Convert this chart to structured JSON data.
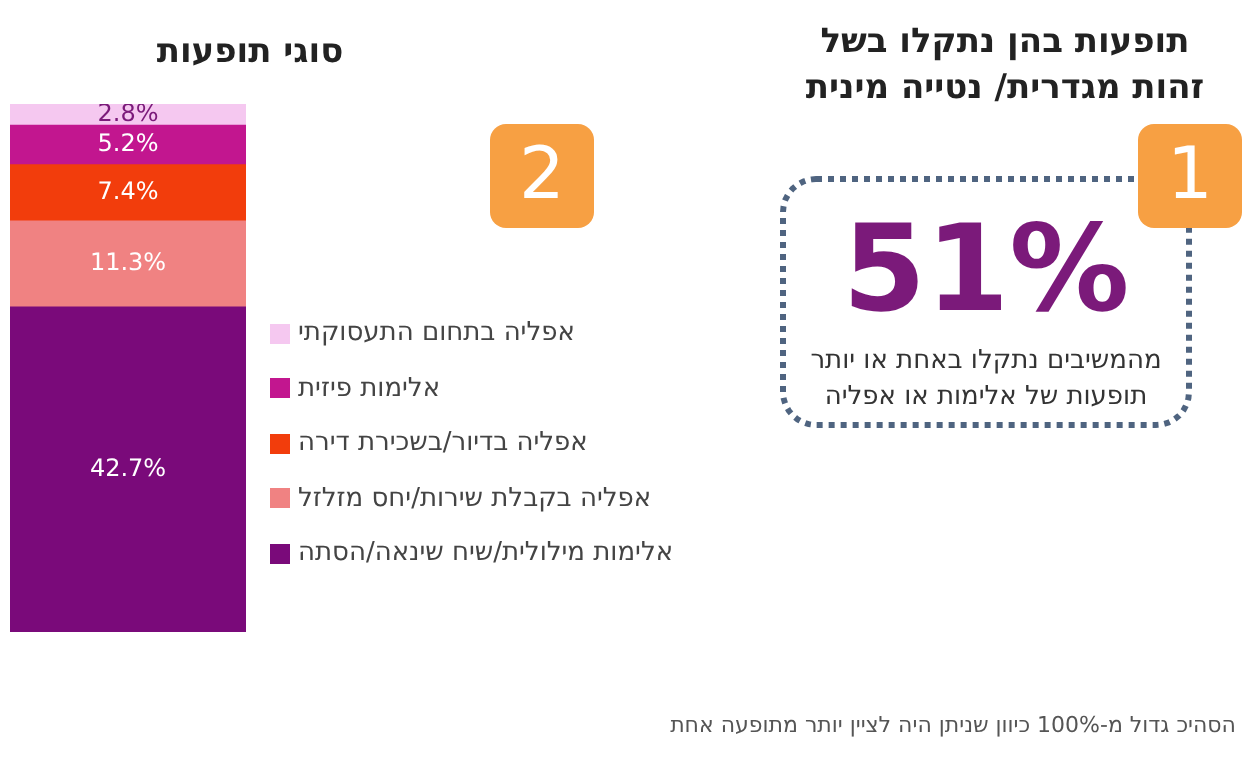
{
  "chart_data": [
    {
      "type": "bar",
      "title": "סוגי תופעות",
      "stacked": true,
      "categories": [
        null
      ],
      "legend": "right",
      "series": [
        {
          "name": "אלימות מילולית/שיח שינאה/הסתה",
          "color": "#7a0a7a",
          "values": [
            42.7
          ],
          "value_labels": [
            "42.7%"
          ]
        },
        {
          "name": "אפליה בקבלת שירות/יחס מזלזל",
          "color": "#f08282",
          "values": [
            11.3
          ],
          "value_labels": [
            "11.3%"
          ]
        },
        {
          "name": "אפליה בדיור/בשכירת דירה",
          "color": "#f23d0c",
          "values": [
            7.4
          ],
          "value_labels": [
            "7.4%"
          ]
        },
        {
          "name": "אלימות פיזית",
          "color": "#c2168f",
          "values": [
            5.2
          ],
          "value_labels": [
            "5.2%"
          ]
        },
        {
          "name": "אפליה בתחום התעסוקתי",
          "color": "#f5c8f0",
          "values": [
            2.8
          ],
          "value_labels": [
            "2.8%"
          ]
        }
      ],
      "annotations": [
        "2",
        "הסהיכ גדול מ-100% כיוון שניתן היה לציין יותר מתופעה אחת"
      ]
    },
    {
      "type": "other",
      "title": "תופעות בהן נתקלו בשל זהות מגדרית/ נטייה מינית",
      "annotations": [
        "1",
        "51%",
        "מהמשיבים נתקלו באחת או יותר תופעות של אלימות או אפליה"
      ]
    }
  ]
}
